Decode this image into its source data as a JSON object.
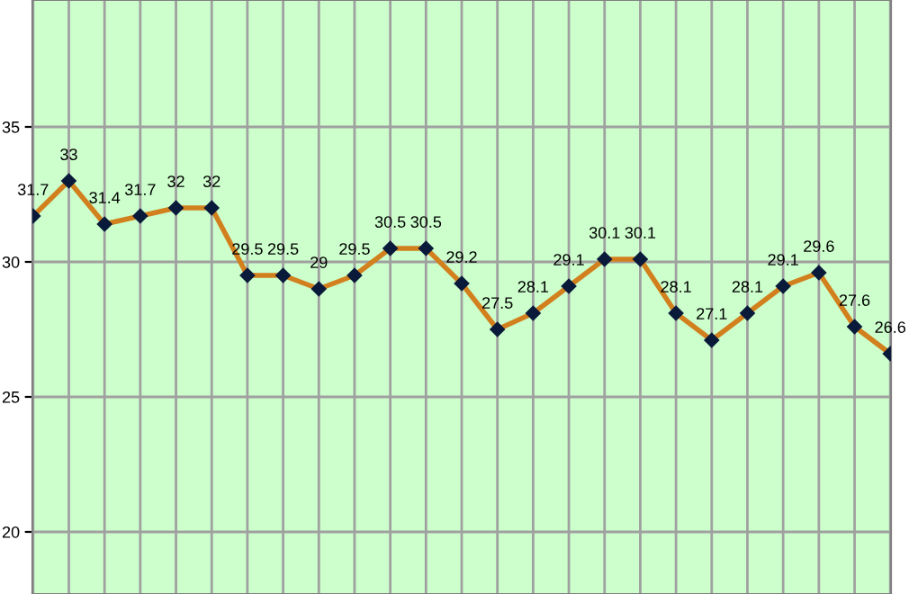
{
  "chart_data": {
    "type": "line",
    "categories": [
      null,
      null,
      null,
      null,
      null,
      null,
      null,
      null,
      null,
      null,
      null,
      null,
      null,
      null,
      null,
      null,
      null,
      null,
      null,
      null,
      null,
      null,
      null,
      null,
      null
    ],
    "series": [
      {
        "color": "#d2801e",
        "values": [
          31.7,
          33,
          31.4,
          31.7,
          32,
          32,
          29.5,
          29.5,
          29,
          29.5,
          30.5,
          30.5,
          29.2,
          27.5,
          28.1,
          29.1,
          30.1,
          30.1,
          28.1,
          27.1,
          28.1,
          29.1,
          29.6,
          27.6,
          26.6
        ]
      }
    ],
    "ylim": [
      17.7,
      39.7
    ],
    "yticks": [
      20,
      25,
      30,
      35
    ],
    "grid": true,
    "tick_labels": "y",
    "data_labels": true,
    "marker": "diamond",
    "line_style": "solid",
    "legend": false
  }
}
